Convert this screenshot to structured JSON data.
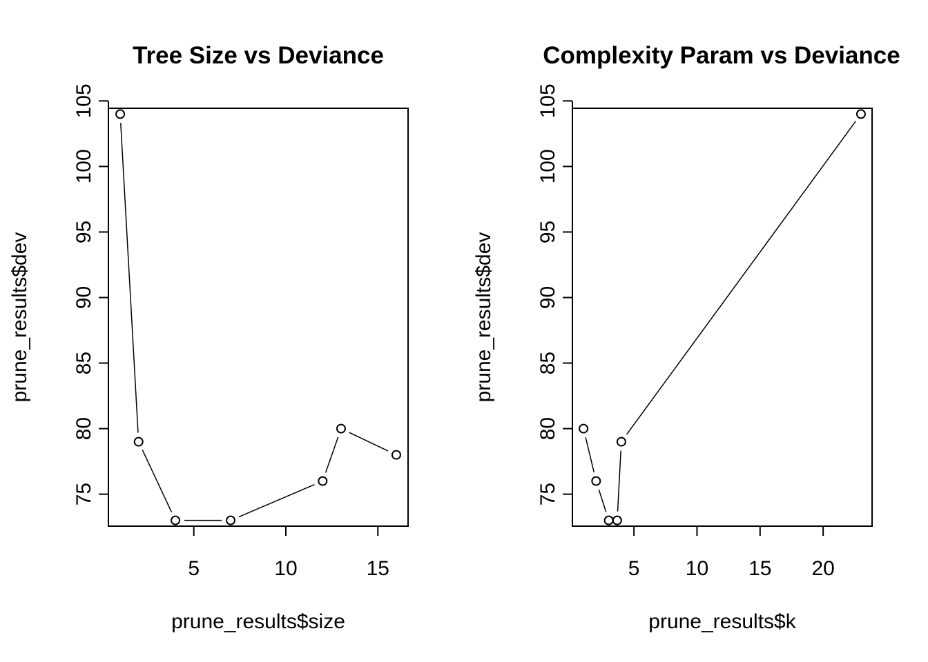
{
  "chart_data": [
    {
      "type": "line",
      "style": "points-and-lines",
      "title": "Tree Size vs Deviance",
      "xlabel": "prune_results$size",
      "ylabel": "prune_results$dev",
      "x": [
        1,
        2,
        4,
        7,
        12,
        13,
        16
      ],
      "y": [
        104,
        79,
        73,
        73,
        76,
        80,
        78
      ],
      "xlim": [
        0.36,
        16.64
      ],
      "ylim": [
        72.56,
        104.44
      ],
      "xticks": [
        5,
        10,
        15
      ],
      "yticks": [
        75,
        80,
        85,
        90,
        95,
        100,
        105
      ],
      "grid": false,
      "legend": "none"
    },
    {
      "type": "line",
      "style": "points-and-lines",
      "title": "Complexity Param vs Deviance",
      "xlabel": "prune_results$k",
      "ylabel": "prune_results$dev",
      "x": [
        1,
        2,
        3,
        3.67,
        4,
        23
      ],
      "y": [
        80,
        76,
        73,
        73,
        79,
        104
      ],
      "xlim": [
        0.12,
        23.88
      ],
      "ylim": [
        72.56,
        104.44
      ],
      "xticks": [
        5,
        10,
        15,
        20
      ],
      "yticks": [
        75,
        80,
        85,
        90,
        95,
        100,
        105
      ],
      "grid": false,
      "legend": "none"
    }
  ]
}
